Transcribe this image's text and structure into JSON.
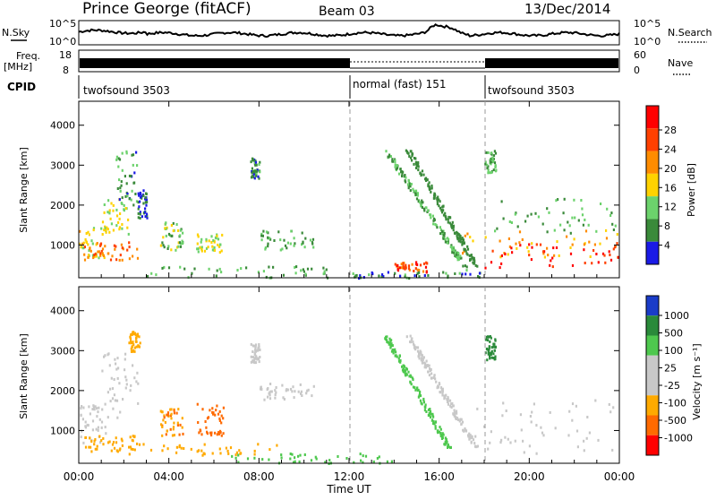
{
  "header": {
    "station": "Prince George (fitACF)",
    "beam": "Beam 03",
    "date": "13/Dec/2014"
  },
  "panels": {
    "sky": {
      "label": "N.Sky",
      "ticks_left": [
        "10^5",
        "10^0"
      ],
      "ticks_right": [
        "10^5",
        "10^0"
      ],
      "right_label": "N.Search"
    },
    "freq": {
      "label_line1": "Freq.",
      "label_line2": "[MHz]",
      "ticks_left": [
        "18",
        "8"
      ],
      "ticks_right": [
        "60",
        "0"
      ],
      "right_label": "Nave"
    },
    "cpid": {
      "label": "CPID",
      "segments": [
        {
          "name": "twofsound 3503",
          "start_hour": 0,
          "end_hour": 12
        },
        {
          "name": "normal (fast) 151",
          "start_hour": 12,
          "end_hour": 18
        },
        {
          "name": "twofsound 3503",
          "start_hour": 18,
          "end_hour": 24
        }
      ]
    },
    "power": {
      "ylabel": "Slant Range [km]",
      "yticks": [
        "4000",
        "3000",
        "2000",
        "1000"
      ],
      "colorbar_label": "Power [dB]",
      "colorbar_ticks": [
        "28",
        "24",
        "20",
        "16",
        "12",
        "8",
        "4"
      ],
      "colorbar_colors": [
        "#ff0000",
        "#ff4000",
        "#ff8c00",
        "#ffd200",
        "#6cd26c",
        "#3a8a3a",
        "#1a1ae6"
      ]
    },
    "velocity": {
      "ylabel": "Slant Range [km]",
      "yticks": [
        "4000",
        "3000",
        "2000",
        "1000"
      ],
      "colorbar_label": "Velocity [m s⁻¹]",
      "colorbar_ticks": [
        "1000",
        "500",
        "100",
        "25",
        "-25",
        "-100",
        "-500",
        "-1000"
      ],
      "colorbar_colors": [
        "#1a3cc8",
        "#2a8a3a",
        "#4ec84e",
        "#c8c8c8",
        "#c8c8c8",
        "#ffaa00",
        "#ff6a00",
        "#ff0000"
      ]
    }
  },
  "xaxis": {
    "ticks": [
      "00:00",
      "04:00",
      "08:00",
      "12:00",
      "16:00",
      "20:00",
      "00:00"
    ],
    "label": "Time UT"
  },
  "chart_data": [
    {
      "type": "heatmap",
      "title": "Power [dB]",
      "xlabel": "",
      "ylabel": "Slant Range [km]",
      "xlim_hours": [
        0,
        24
      ],
      "ylim": [
        180,
        4600
      ],
      "clim": [
        0,
        30
      ],
      "grid": false,
      "blobs": [
        {
          "t0": 0.0,
          "t1": 1.2,
          "r0": 700,
          "r1": 1500,
          "v": 16
        },
        {
          "t0": 0.2,
          "t1": 2.6,
          "r0": 650,
          "r1": 1100,
          "v": 22
        },
        {
          "t0": 1.0,
          "t1": 2.2,
          "r0": 1300,
          "r1": 2200,
          "v": 14
        },
        {
          "t0": 1.6,
          "t1": 2.6,
          "r0": 2000,
          "r1": 3400,
          "v": 9
        },
        {
          "t0": 2.6,
          "t1": 3.0,
          "r0": 1700,
          "r1": 2400,
          "v": 6
        },
        {
          "t0": 3.6,
          "t1": 4.6,
          "r0": 900,
          "r1": 1600,
          "v": 12
        },
        {
          "t0": 5.2,
          "t1": 6.4,
          "r0": 850,
          "r1": 1300,
          "v": 14
        },
        {
          "t0": 7.6,
          "t1": 8.0,
          "r0": 2700,
          "r1": 3200,
          "v": 8
        },
        {
          "t0": 8.0,
          "t1": 10.4,
          "r0": 900,
          "r1": 1400,
          "v": 10
        },
        {
          "t0": 3.0,
          "t1": 12.0,
          "r0": 200,
          "r1": 500,
          "v": 10
        },
        {
          "t0": 14.0,
          "t1": 15.5,
          "r0": 350,
          "r1": 600,
          "v": 24
        },
        {
          "t0": 12.1,
          "t1": 18.0,
          "r0": 200,
          "r1": 350,
          "v": 8
        },
        {
          "t0": 17.0,
          "t1": 24.0,
          "r0": 700,
          "r1": 1400,
          "v": 18
        },
        {
          "t0": 18.0,
          "t1": 24.0,
          "r0": 450,
          "r1": 1100,
          "v": 27
        },
        {
          "t0": 18.0,
          "t1": 24.0,
          "r0": 1300,
          "r1": 2200,
          "v": 10
        },
        {
          "t0": 18.0,
          "t1": 18.5,
          "r0": 2800,
          "r1": 3400,
          "v": 10
        }
      ],
      "streaks": [
        {
          "t0": 13.6,
          "r0": 3400,
          "t1": 17.2,
          "r1": 400,
          "v": 10
        },
        {
          "t0": 14.6,
          "r0": 3400,
          "t1": 17.6,
          "r1": 500,
          "v": 8
        }
      ]
    },
    {
      "type": "heatmap",
      "title": "Velocity [m s⁻¹]",
      "xlabel": "Time UT",
      "ylabel": "Slant Range [km]",
      "xlim_hours": [
        0,
        24
      ],
      "ylim": [
        180,
        4600
      ],
      "clim": [
        -1000,
        1000
      ],
      "grid": false,
      "blobs": [
        {
          "t0": 0.0,
          "t1": 1.2,
          "r0": 700,
          "r1": 1700,
          "v": 0
        },
        {
          "t0": 0.2,
          "t1": 2.6,
          "r0": 500,
          "r1": 900,
          "v": -150
        },
        {
          "t0": 1.0,
          "t1": 2.6,
          "r0": 1200,
          "r1": 3000,
          "v": 0
        },
        {
          "t0": 2.2,
          "t1": 2.7,
          "r0": 3000,
          "r1": 3500,
          "v": -100
        },
        {
          "t0": 3.6,
          "t1": 4.6,
          "r0": 900,
          "r1": 1600,
          "v": -300
        },
        {
          "t0": 5.2,
          "t1": 6.4,
          "r0": 900,
          "r1": 1700,
          "v": -500
        },
        {
          "t0": 7.6,
          "t1": 8.0,
          "r0": 2700,
          "r1": 3200,
          "v": 0
        },
        {
          "t0": 8.0,
          "t1": 10.4,
          "r0": 1800,
          "r1": 2200,
          "v": 0
        },
        {
          "t0": 2.0,
          "t1": 9.0,
          "r0": 400,
          "r1": 700,
          "v": -80
        },
        {
          "t0": 6.0,
          "t1": 14.0,
          "r0": 200,
          "r1": 450,
          "v": 90
        },
        {
          "t0": 17.5,
          "t1": 24.0,
          "r0": 400,
          "r1": 1800,
          "v": 0
        },
        {
          "t0": 18.0,
          "t1": 18.5,
          "r0": 2800,
          "r1": 3400,
          "v": 600
        }
      ],
      "streaks": [
        {
          "t0": 13.6,
          "r0": 3400,
          "t1": 16.4,
          "r1": 600,
          "v": 150
        },
        {
          "t0": 14.6,
          "r0": 3400,
          "t1": 17.6,
          "r1": 600,
          "v": 0
        }
      ]
    }
  ]
}
